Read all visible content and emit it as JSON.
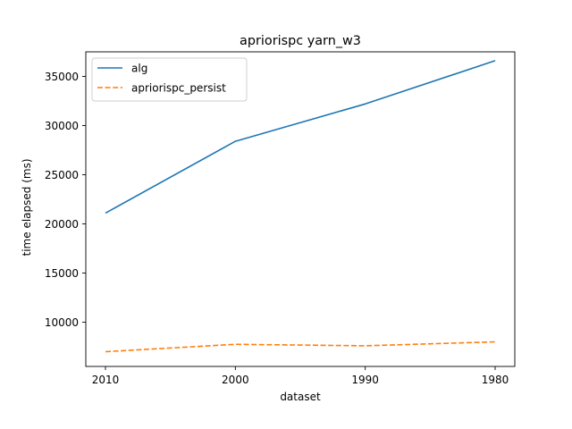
{
  "chart_data": {
    "type": "line",
    "title": "apriorispc yarn_w3",
    "xlabel": "dataset",
    "ylabel": "time elapsed (ms)",
    "categories": [
      "2010",
      "2000",
      "1990",
      "1980"
    ],
    "ylim": [
      5500,
      37500
    ],
    "yticks": [
      10000,
      15000,
      20000,
      25000,
      30000,
      35000
    ],
    "grid": false,
    "legend_position": "top-left",
    "series": [
      {
        "name": "alg",
        "values": [
          21100,
          28400,
          32200,
          36600
        ],
        "color": "#1f77b4",
        "style": "solid"
      },
      {
        "name": "apriorispc_persist",
        "values": [
          7000,
          7750,
          7600,
          8000
        ],
        "color": "#ff7f0e",
        "style": "dashed"
      }
    ]
  }
}
